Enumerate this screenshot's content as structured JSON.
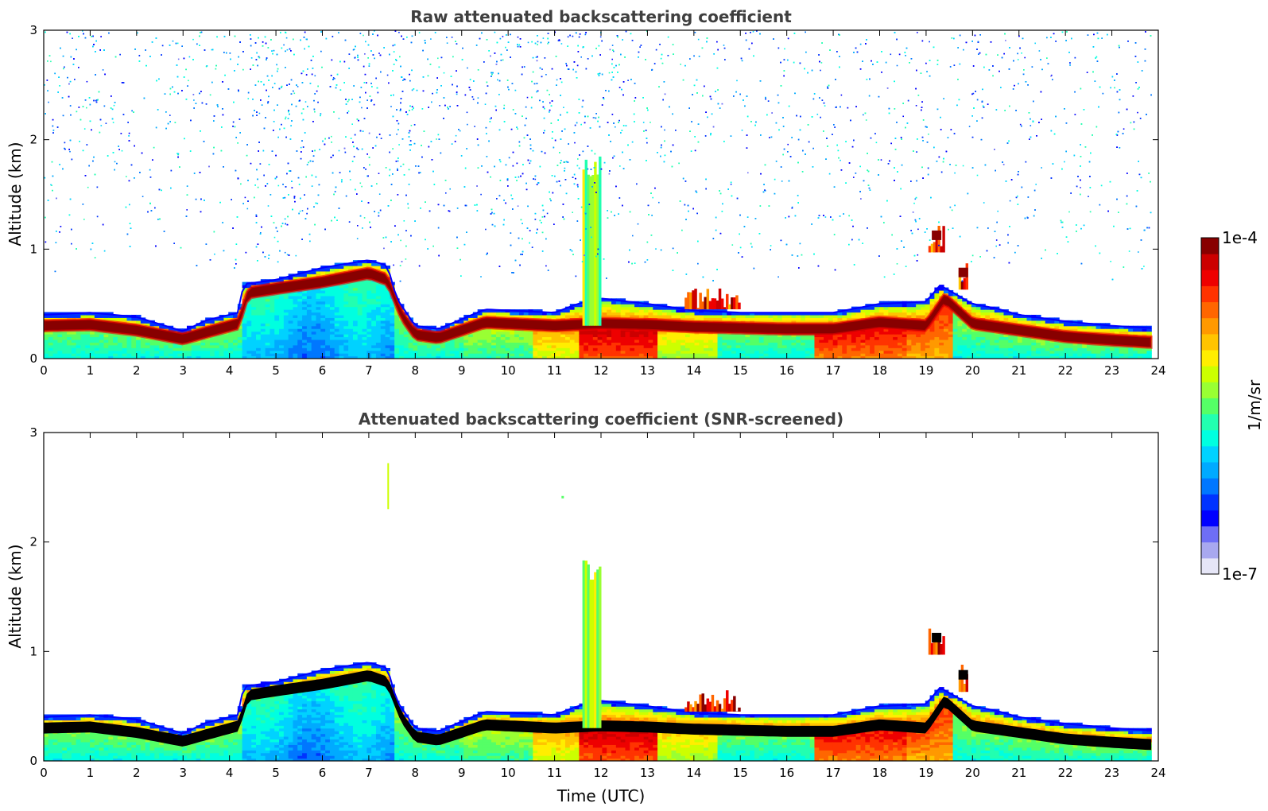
{
  "colors": {
    "scale": [
      "#e6e6f7",
      "#a8a8ef",
      "#6e6ef5",
      "#0000ff",
      "#0033ff",
      "#0077ff",
      "#00aaff",
      "#00d2ff",
      "#00ffe0",
      "#22ffb0",
      "#55ff66",
      "#99ff33",
      "#ccff00",
      "#ffee00",
      "#ffc400",
      "#ff9900",
      "#ff6600",
      "#ff3300",
      "#ee0000",
      "#cc0000",
      "#880000"
    ],
    "core_screened": "#000000"
  },
  "chart_data": [
    {
      "type": "heatmap",
      "title": "Raw attenuated backscattering coefficient",
      "xlabel": "",
      "ylabel": "Altitude (km)",
      "xlim": [
        0,
        24
      ],
      "ylim": [
        0,
        3
      ],
      "xticks": [
        "0",
        "1",
        "2",
        "3",
        "4",
        "5",
        "6",
        "7",
        "8",
        "9",
        "10",
        "11",
        "12",
        "13",
        "14",
        "15",
        "16",
        "17",
        "18",
        "19",
        "20",
        "21",
        "22",
        "23",
        "24"
      ],
      "yticks": [
        "0",
        "1",
        "2",
        "3"
      ],
      "boundary_layer_top_km": [
        [
          0,
          0.4
        ],
        [
          1,
          0.42
        ],
        [
          2,
          0.38
        ],
        [
          3,
          0.25
        ],
        [
          3.5,
          0.35
        ],
        [
          4.2,
          0.42
        ],
        [
          4.3,
          0.68
        ],
        [
          5,
          0.72
        ],
        [
          6,
          0.83
        ],
        [
          7,
          0.9
        ],
        [
          7.4,
          0.85
        ],
        [
          7.6,
          0.55
        ],
        [
          8,
          0.3
        ],
        [
          8.5,
          0.27
        ],
        [
          9,
          0.36
        ],
        [
          9.5,
          0.45
        ],
        [
          10,
          0.44
        ],
        [
          11,
          0.42
        ],
        [
          11.5,
          0.5
        ],
        [
          12,
          0.55
        ],
        [
          13,
          0.5
        ],
        [
          14,
          0.44
        ],
        [
          15,
          0.42
        ],
        [
          16,
          0.42
        ],
        [
          17,
          0.42
        ],
        [
          18,
          0.5
        ],
        [
          19,
          0.52
        ],
        [
          19.3,
          0.67
        ],
        [
          20,
          0.5
        ],
        [
          20.5,
          0.46
        ],
        [
          21,
          0.4
        ],
        [
          22,
          0.34
        ],
        [
          23,
          0.3
        ],
        [
          23.8,
          0.28
        ]
      ],
      "aerosol_layer_center_km": [
        [
          0,
          0.3
        ],
        [
          1,
          0.31
        ],
        [
          2,
          0.26
        ],
        [
          3,
          0.18
        ],
        [
          3.5,
          0.24
        ],
        [
          4.2,
          0.32
        ],
        [
          4.4,
          0.6
        ],
        [
          5,
          0.64
        ],
        [
          6,
          0.7
        ],
        [
          7,
          0.78
        ],
        [
          7.4,
          0.72
        ],
        [
          7.7,
          0.4
        ],
        [
          8,
          0.22
        ],
        [
          8.5,
          0.19
        ],
        [
          9,
          0.26
        ],
        [
          9.5,
          0.33
        ],
        [
          10,
          0.32
        ],
        [
          11,
          0.3
        ],
        [
          12,
          0.32
        ],
        [
          13,
          0.31
        ],
        [
          14,
          0.29
        ],
        [
          15,
          0.28
        ],
        [
          16,
          0.27
        ],
        [
          17,
          0.27
        ],
        [
          18,
          0.33
        ],
        [
          19,
          0.3
        ],
        [
          19.4,
          0.55
        ],
        [
          20,
          0.32
        ],
        [
          21,
          0.26
        ],
        [
          22,
          0.2
        ],
        [
          23,
          0.17
        ],
        [
          23.8,
          0.15
        ]
      ],
      "features": [
        {
          "type": "plume",
          "t": [
            11.6,
            12.0
          ],
          "top_km": 1.85
        },
        {
          "type": "cloud",
          "t": [
            19.05,
            19.4
          ],
          "top_km": 1.22
        },
        {
          "type": "cloud",
          "t": [
            19.7,
            19.9
          ],
          "top_km": 0.88
        },
        {
          "type": "elevated_layer",
          "t": [
            13.8,
            15.0
          ],
          "top_km": 0.65
        }
      ],
      "noise_above_km": 1.0
    },
    {
      "type": "heatmap",
      "title": "Attenuated backscattering coefficient (SNR-screened)",
      "xlabel": "Time (UTC)",
      "ylabel": "Altitude (km)",
      "xlim": [
        0,
        24
      ],
      "ylim": [
        0,
        3
      ],
      "xticks": [
        "0",
        "1",
        "2",
        "3",
        "4",
        "5",
        "6",
        "7",
        "8",
        "9",
        "10",
        "11",
        "12",
        "13",
        "14",
        "15",
        "16",
        "17",
        "18",
        "19",
        "20",
        "21",
        "22",
        "23",
        "24"
      ],
      "yticks": [
        "0",
        "1",
        "2",
        "3"
      ],
      "note_features": [
        {
          "type": "plume",
          "t": [
            11.6,
            12.0
          ],
          "top_km": 1.85
        },
        {
          "type": "cloud",
          "t": [
            19.05,
            19.4
          ],
          "top_km": 1.2
        },
        {
          "type": "cloud",
          "t": [
            19.7,
            19.9
          ],
          "top_km": 0.9
        }
      ]
    }
  ],
  "colorbar": {
    "max_label": "1e-4",
    "min_label": "1e-7",
    "unit_label": "1/m/sr"
  }
}
